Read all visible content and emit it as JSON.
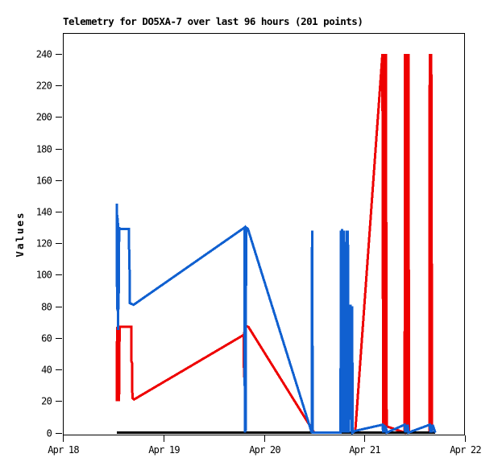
{
  "chart_data": {
    "type": "line",
    "title": "Telemetry for DO5XA-7 over last 96 hours (201 points)",
    "xlabel": "",
    "ylabel": "Values",
    "point_count_note": "201 points",
    "x_unit": "hours since Apr 18 00:00",
    "xlim": [
      0,
      96
    ],
    "ylim": [
      0,
      240
    ],
    "grid": false,
    "legend": false,
    "colors": {
      "title": "#000080",
      "axis": "#000000",
      "red_series": "#ee0000",
      "blue_series": "#1060d0",
      "baseline": "#000000",
      "background": "#ffffff"
    },
    "y_ticks": [
      0,
      20,
      40,
      60,
      80,
      100,
      120,
      140,
      160,
      180,
      200,
      220,
      240
    ],
    "x_ticks": [
      {
        "hour": 0,
        "label": "Apr 18"
      },
      {
        "hour": 24,
        "label": "Apr 19"
      },
      {
        "hour": 48,
        "label": "Apr 20"
      },
      {
        "hour": 72,
        "label": "Apr 21"
      },
      {
        "hour": 96,
        "label": "Apr 22"
      }
    ],
    "series": [
      {
        "name": "red-series",
        "color": "#ee0000",
        "width": 3,
        "points": [
          [
            12.9,
            20
          ],
          [
            12.95,
            67
          ],
          [
            13.0,
            21
          ],
          [
            13.1,
            66
          ],
          [
            13.2,
            20
          ],
          [
            13.3,
            67
          ],
          [
            13.4,
            20
          ],
          [
            13.55,
            67
          ],
          [
            16.35,
            67
          ],
          [
            16.4,
            45
          ],
          [
            16.55,
            44
          ],
          [
            16.6,
            22
          ],
          [
            17.0,
            21
          ],
          [
            43.2,
            62
          ],
          [
            43.25,
            35
          ],
          [
            43.3,
            63
          ],
          [
            43.5,
            68
          ],
          [
            44.3,
            67
          ],
          [
            60.0,
            0
          ],
          [
            69.8,
            0
          ],
          [
            76.3,
            240
          ],
          [
            76.5,
            4
          ],
          [
            76.7,
            240
          ],
          [
            76.9,
            3
          ],
          [
            77.1,
            240
          ],
          [
            77.3,
            4
          ],
          [
            81.6,
            0
          ],
          [
            81.7,
            240
          ],
          [
            81.9,
            4
          ],
          [
            82.1,
            240
          ],
          [
            82.3,
            3
          ],
          [
            82.5,
            240
          ],
          [
            82.65,
            0
          ],
          [
            87.5,
            0
          ],
          [
            87.6,
            240
          ],
          [
            87.8,
            4
          ],
          [
            87.95,
            240
          ],
          [
            88.15,
            0
          ]
        ]
      },
      {
        "name": "zero-baseline",
        "color": "#000000",
        "width": 3,
        "points": [
          [
            12.9,
            0
          ],
          [
            88.9,
            0
          ]
        ]
      },
      {
        "name": "blue-series",
        "color": "#1060d0",
        "width": 3,
        "points": [
          [
            12.9,
            145
          ],
          [
            12.95,
            78
          ],
          [
            13.0,
            138
          ],
          [
            13.05,
            77
          ],
          [
            13.1,
            136
          ],
          [
            13.15,
            65
          ],
          [
            13.2,
            133
          ],
          [
            13.3,
            78
          ],
          [
            13.45,
            130
          ],
          [
            13.6,
            129
          ],
          [
            15.8,
            129
          ],
          [
            15.85,
            104
          ],
          [
            15.95,
            103
          ],
          [
            16.0,
            82
          ],
          [
            16.9,
            81
          ],
          [
            43.4,
            130
          ],
          [
            43.45,
            0
          ],
          [
            43.55,
            129
          ],
          [
            43.65,
            1
          ],
          [
            43.75,
            130
          ],
          [
            44.2,
            129
          ],
          [
            59.4,
            0
          ],
          [
            59.5,
            128
          ],
          [
            59.65,
            0
          ],
          [
            66.3,
            0
          ],
          [
            66.4,
            128
          ],
          [
            66.55,
            0
          ],
          [
            66.7,
            129
          ],
          [
            66.85,
            0
          ],
          [
            67.05,
            128
          ],
          [
            67.2,
            0
          ],
          [
            67.7,
            128
          ],
          [
            67.85,
            0
          ],
          [
            68.05,
            128
          ],
          [
            68.2,
            0
          ],
          [
            68.7,
            81
          ],
          [
            68.85,
            0
          ],
          [
            69.05,
            80
          ],
          [
            69.2,
            0
          ],
          [
            69.7,
            1
          ],
          [
            76.3,
            5
          ],
          [
            76.5,
            0
          ],
          [
            76.7,
            5
          ],
          [
            76.9,
            0
          ],
          [
            77.1,
            4
          ],
          [
            77.3,
            0
          ],
          [
            81.6,
            5
          ],
          [
            81.75,
            0
          ],
          [
            81.95,
            5
          ],
          [
            82.15,
            0
          ],
          [
            82.35,
            5
          ],
          [
            82.5,
            0
          ],
          [
            87.6,
            5
          ],
          [
            87.75,
            0
          ],
          [
            87.95,
            5
          ],
          [
            88.1,
            0
          ],
          [
            88.3,
            5
          ],
          [
            88.9,
            0
          ]
        ]
      }
    ]
  }
}
